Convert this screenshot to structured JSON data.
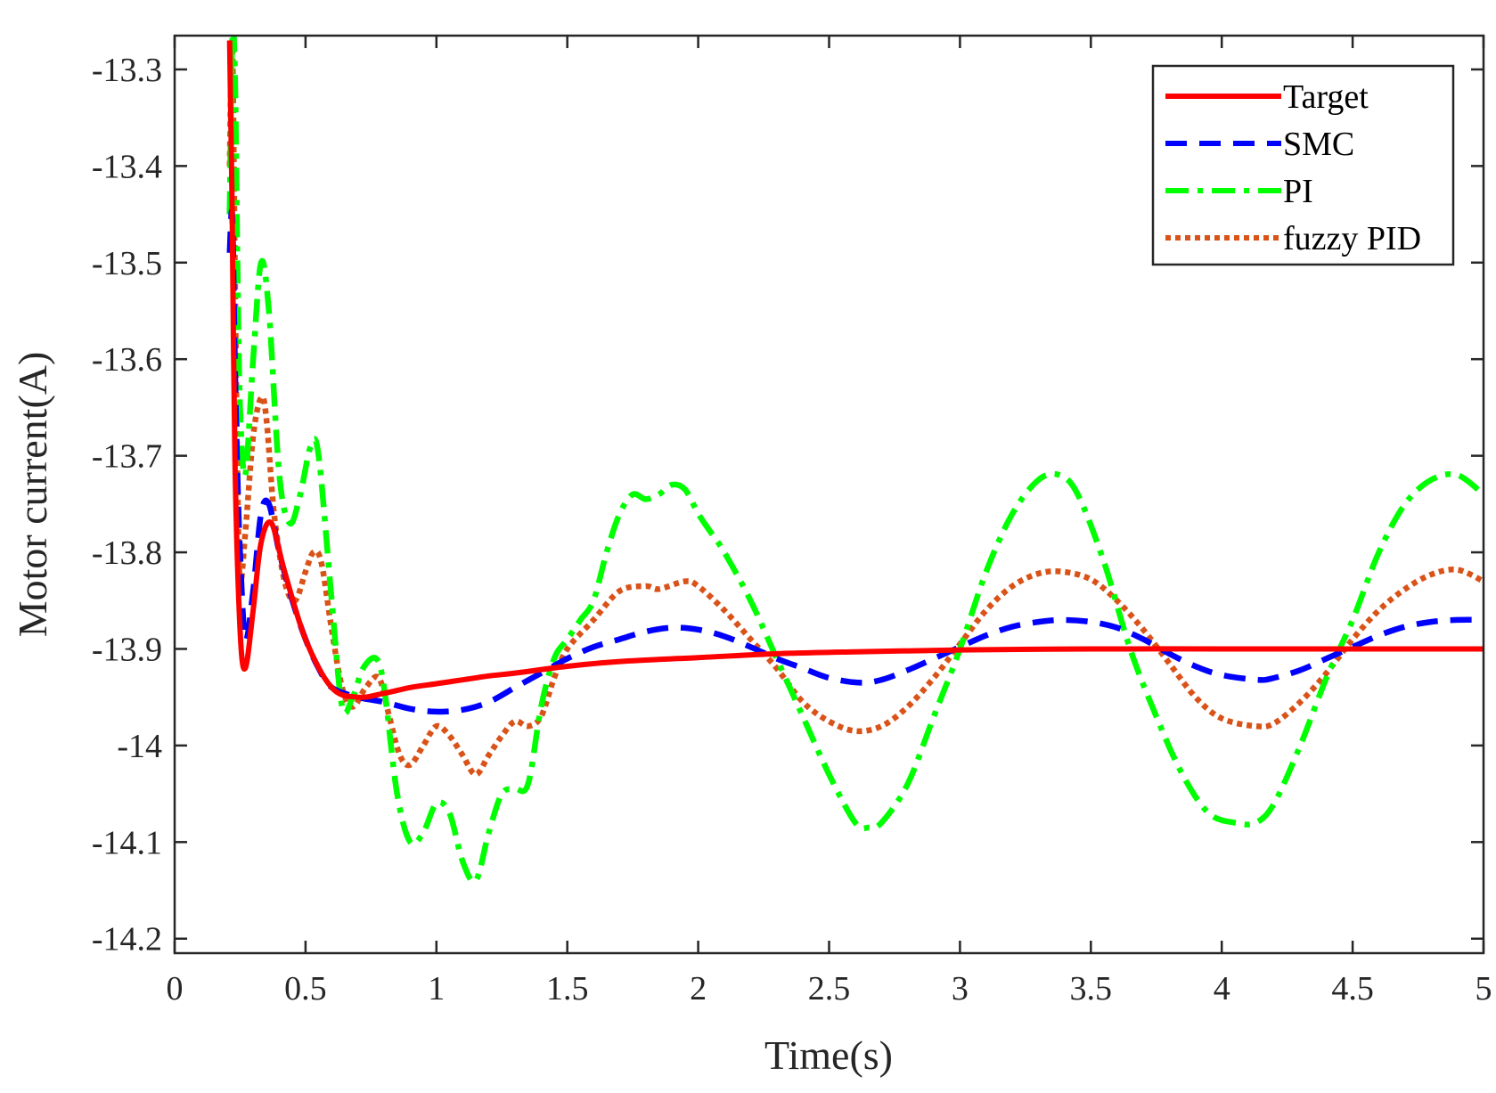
{
  "chart_data": {
    "type": "line",
    "title": "",
    "xlabel": "Time(s)",
    "ylabel": "Motor current(A)",
    "xlim": [
      0,
      5
    ],
    "ylim": [
      -14.215,
      -13.265
    ],
    "xticks": [
      0,
      0.5,
      1,
      1.5,
      2,
      2.5,
      3,
      3.5,
      4,
      4.5,
      5
    ],
    "xtick_labels": [
      "0",
      "0.5",
      "1",
      "1.5",
      "2",
      "2.5",
      "3",
      "3.5",
      "4",
      "4.5",
      "5"
    ],
    "yticks": [
      -13.3,
      -13.4,
      -13.5,
      -13.6,
      -13.7,
      -13.8,
      -13.9,
      -14,
      -14.1,
      -14.2
    ],
    "ytick_labels": [
      "-13.3",
      "-13.4",
      "-13.5",
      "-13.6",
      "-13.7",
      "-13.8",
      "-13.9",
      "-14",
      "-14.1",
      "-14.2"
    ],
    "grid": false,
    "legend_position": "top-right",
    "series": [
      {
        "name": "Target",
        "color": "#ff0000",
        "style": "solid",
        "x": [
          0.21,
          0.22,
          0.23,
          0.25,
          0.27,
          0.3,
          0.33,
          0.37,
          0.42,
          0.5,
          0.6,
          0.7,
          0.8,
          0.9,
          1.0,
          1.1,
          1.2,
          1.3,
          1.5,
          1.7,
          2.0,
          2.3,
          2.6,
          3.0,
          3.5,
          4.0,
          4.5,
          5.0
        ],
        "y": [
          -13.27,
          -13.45,
          -13.7,
          -13.88,
          -13.92,
          -13.86,
          -13.79,
          -13.77,
          -13.82,
          -13.89,
          -13.94,
          -13.95,
          -13.946,
          -13.94,
          -13.936,
          -13.932,
          -13.928,
          -13.925,
          -13.918,
          -13.913,
          -13.909,
          -13.905,
          -13.903,
          -13.901,
          -13.9,
          -13.9,
          -13.9,
          -13.9
        ]
      },
      {
        "name": "SMC",
        "color": "#0000ff",
        "style": "dashed",
        "x": [
          0.21,
          0.22,
          0.23,
          0.24,
          0.25,
          0.27,
          0.3,
          0.33,
          0.36,
          0.4,
          0.45,
          0.5,
          0.55,
          0.6,
          0.7,
          0.8,
          0.9,
          1.0,
          1.1,
          1.2,
          1.3,
          1.4,
          1.5,
          1.6,
          1.7,
          1.8,
          1.9,
          2.0,
          2.1,
          2.2,
          2.3,
          2.4,
          2.5,
          2.62,
          2.7,
          2.8,
          2.9,
          3.0,
          3.1,
          3.2,
          3.3,
          3.39,
          3.5,
          3.6,
          3.7,
          3.8,
          3.9,
          4.0,
          4.14,
          4.2,
          4.3,
          4.4,
          4.5,
          4.6,
          4.7,
          4.8,
          4.9,
          5.0
        ],
        "y": [
          -13.49,
          -13.45,
          -13.6,
          -13.72,
          -13.8,
          -13.89,
          -13.84,
          -13.76,
          -13.75,
          -13.8,
          -13.85,
          -13.89,
          -13.92,
          -13.94,
          -13.95,
          -13.955,
          -13.962,
          -13.965,
          -13.963,
          -13.955,
          -13.94,
          -13.925,
          -13.91,
          -13.898,
          -13.89,
          -13.882,
          -13.878,
          -13.88,
          -13.887,
          -13.898,
          -13.91,
          -13.92,
          -13.93,
          -13.935,
          -13.932,
          -13.922,
          -13.91,
          -13.898,
          -13.886,
          -13.877,
          -13.872,
          -13.87,
          -13.872,
          -13.878,
          -13.89,
          -13.905,
          -13.918,
          -13.927,
          -13.932,
          -13.93,
          -13.922,
          -13.91,
          -13.898,
          -13.886,
          -13.877,
          -13.872,
          -13.87,
          -13.87
        ]
      },
      {
        "name": "PI",
        "color": "#00ff00",
        "style": "dashdot",
        "x": [
          0.21,
          0.22,
          0.23,
          0.24,
          0.25,
          0.27,
          0.3,
          0.33,
          0.36,
          0.4,
          0.44,
          0.48,
          0.52,
          0.55,
          0.6,
          0.64,
          0.68,
          0.72,
          0.77,
          0.8,
          0.85,
          0.9,
          0.95,
          1.0,
          1.05,
          1.1,
          1.15,
          1.2,
          1.25,
          1.3,
          1.35,
          1.4,
          1.45,
          1.5,
          1.55,
          1.6,
          1.65,
          1.7,
          1.75,
          1.8,
          1.85,
          1.9,
          1.95,
          2.0,
          2.05,
          2.1,
          2.2,
          2.3,
          2.4,
          2.5,
          2.6,
          2.65,
          2.7,
          2.8,
          2.9,
          3.0,
          3.1,
          3.2,
          3.3,
          3.38,
          3.45,
          3.55,
          3.65,
          3.75,
          3.85,
          3.95,
          4.05,
          4.13,
          4.2,
          4.3,
          4.4,
          4.5,
          4.6,
          4.7,
          4.8,
          4.9,
          5.0
        ],
        "y": [
          -13.45,
          -13.27,
          -13.3,
          -13.5,
          -13.65,
          -13.72,
          -13.6,
          -13.5,
          -13.55,
          -13.72,
          -13.77,
          -13.74,
          -13.69,
          -13.7,
          -13.85,
          -13.96,
          -13.95,
          -13.92,
          -13.91,
          -13.94,
          -14.05,
          -14.1,
          -14.09,
          -14.06,
          -14.07,
          -14.12,
          -14.14,
          -14.09,
          -14.05,
          -14.045,
          -14.04,
          -13.96,
          -13.91,
          -13.89,
          -13.87,
          -13.85,
          -13.8,
          -13.76,
          -13.74,
          -13.745,
          -13.74,
          -13.73,
          -13.735,
          -13.76,
          -13.78,
          -13.8,
          -13.85,
          -13.91,
          -13.97,
          -14.03,
          -14.08,
          -14.085,
          -14.08,
          -14.04,
          -13.97,
          -13.9,
          -13.82,
          -13.76,
          -13.725,
          -13.72,
          -13.74,
          -13.81,
          -13.9,
          -13.97,
          -14.03,
          -14.07,
          -14.08,
          -14.08,
          -14.06,
          -14.0,
          -13.93,
          -13.87,
          -13.8,
          -13.75,
          -13.725,
          -13.72,
          -13.74
        ]
      },
      {
        "name": "fuzzy PID",
        "color": "#d95319",
        "style": "dotted",
        "x": [
          0.21,
          0.22,
          0.23,
          0.24,
          0.25,
          0.27,
          0.3,
          0.33,
          0.35,
          0.38,
          0.42,
          0.46,
          0.5,
          0.53,
          0.56,
          0.6,
          0.64,
          0.68,
          0.73,
          0.78,
          0.82,
          0.86,
          0.9,
          0.95,
          1.0,
          1.05,
          1.1,
          1.15,
          1.2,
          1.25,
          1.3,
          1.35,
          1.4,
          1.45,
          1.5,
          1.6,
          1.7,
          1.8,
          1.85,
          1.95,
          2.0,
          2.1,
          2.2,
          2.3,
          2.4,
          2.5,
          2.6,
          2.7,
          2.8,
          2.9,
          3.0,
          3.1,
          3.2,
          3.3,
          3.39,
          3.5,
          3.6,
          3.7,
          3.8,
          3.9,
          4.0,
          4.13,
          4.2,
          4.3,
          4.4,
          4.5,
          4.6,
          4.7,
          4.8,
          4.9,
          5.0
        ],
        "y": [
          -13.4,
          -13.27,
          -13.5,
          -13.72,
          -13.83,
          -13.78,
          -13.68,
          -13.64,
          -13.66,
          -13.76,
          -13.83,
          -13.85,
          -13.82,
          -13.8,
          -13.81,
          -13.88,
          -13.94,
          -13.96,
          -13.94,
          -13.93,
          -13.97,
          -14.01,
          -14.02,
          -14.0,
          -13.98,
          -13.99,
          -14.01,
          -14.03,
          -14.01,
          -13.99,
          -13.975,
          -13.98,
          -13.97,
          -13.93,
          -13.9,
          -13.87,
          -13.84,
          -13.835,
          -13.838,
          -13.83,
          -13.835,
          -13.86,
          -13.89,
          -13.92,
          -13.955,
          -13.975,
          -13.985,
          -13.98,
          -13.96,
          -13.93,
          -13.895,
          -13.86,
          -13.835,
          -13.822,
          -13.82,
          -13.828,
          -13.85,
          -13.88,
          -13.915,
          -13.95,
          -13.972,
          -13.98,
          -13.977,
          -13.955,
          -13.925,
          -13.89,
          -13.86,
          -13.838,
          -13.823,
          -13.818,
          -13.83
        ]
      }
    ]
  }
}
